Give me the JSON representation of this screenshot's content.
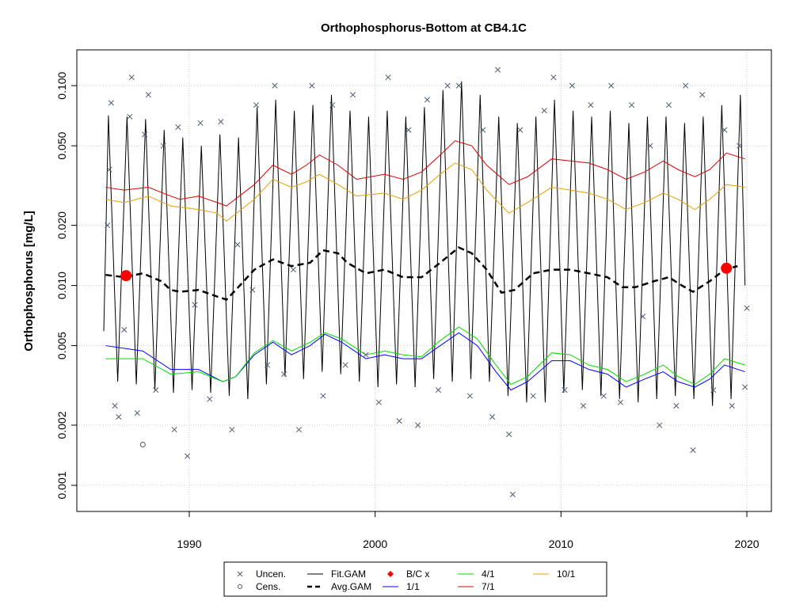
{
  "chart_data": {
    "type": "line",
    "title": "Orthophosphorus-Bottom at CB4.1C",
    "y_label": "Orthophosphorus [mg/L]",
    "xlim": [
      1983.95,
      2021.32
    ],
    "xticks": [
      1990,
      2000,
      2010,
      2020
    ],
    "ylim": [
      0.00074,
      0.151
    ],
    "ylog": true,
    "grid": true,
    "yticks": [
      0.001,
      0.002,
      0.005,
      {
        "value": 0.01,
        "label": "0.010"
      },
      {
        "value": 0.02,
        "label": "0.020"
      },
      {
        "value": 0.05,
        "label": "0.050"
      },
      {
        "value": 0.1,
        "label": "0.100"
      }
    ],
    "series": [
      {
        "name": "Uncen.",
        "color": "#4f5b6e",
        "style": "cross",
        "x": [
          1985.6,
          1985.7,
          1985.8,
          1986.0,
          1986.2,
          1986.5,
          1986.8,
          1986.9,
          1987.2,
          1987.6,
          1987.8,
          1988.2,
          1988.6,
          1989.2,
          1989.4,
          1989.9,
          1990.3,
          1990.6,
          1991.1,
          1991.7,
          1992.3,
          1992.6,
          1993.4,
          1993.6,
          1994.2,
          1994.6,
          1995.1,
          1995.6,
          1995.9,
          1996.6,
          1997.2,
          1997.7,
          1998.4,
          1998.8,
          1999.5,
          2000.2,
          2000.7,
          2001.3,
          2001.8,
          2002.3,
          2002.8,
          2003.4,
          2003.9,
          2004.5,
          2005.1,
          2005.8,
          2006.3,
          2006.6,
          2007.2,
          2007.4,
          2007.8,
          2008.5,
          2009.1,
          2009.6,
          2010.2,
          2010.6,
          2011.2,
          2011.6,
          2012.3,
          2012.7,
          2013.2,
          2013.8,
          2014.4,
          2014.8,
          2015.3,
          2015.8,
          2016.2,
          2016.7,
          2017.1,
          2017.6,
          2018.2,
          2018.8,
          2019.2,
          2019.6,
          2019.9,
          2020.0
        ],
        "values": [
          0.02,
          0.038,
          0.082,
          0.0025,
          0.0022,
          0.006,
          0.07,
          0.11,
          0.0023,
          0.057,
          0.09,
          0.003,
          0.05,
          0.0019,
          0.062,
          0.0014,
          0.008,
          0.065,
          0.0027,
          0.066,
          0.0019,
          0.016,
          0.0095,
          0.08,
          0.004,
          0.1,
          0.0036,
          0.012,
          0.0019,
          0.1,
          0.0028,
          0.08,
          0.004,
          0.09,
          0.0045,
          0.0026,
          0.11,
          0.0021,
          0.06,
          0.002,
          0.085,
          0.003,
          0.1,
          0.1,
          0.0028,
          0.06,
          0.0022,
          0.12,
          0.0018,
          0.0009,
          0.06,
          0.0028,
          0.075,
          0.11,
          0.003,
          0.1,
          0.0025,
          0.08,
          0.0028,
          0.1,
          0.0026,
          0.08,
          0.007,
          0.05,
          0.002,
          0.08,
          0.0025,
          0.1,
          0.0015,
          0.09,
          0.003,
          0.06,
          0.0025,
          0.05,
          0.0031,
          0.0077
        ]
      },
      {
        "name": "Cens.",
        "color": "#4f5b6e",
        "style": "circle",
        "x": [
          1987.5
        ],
        "values": [
          0.0016
        ]
      },
      {
        "name": "Fit.GAM",
        "color": "#000000",
        "style": "line",
        "x": [
          1985.4,
          1985.65,
          1986.15,
          1986.65,
          1987.15,
          1987.65,
          1988.15,
          1988.65,
          1989.15,
          1989.65,
          1990.15,
          1990.65,
          1991.15,
          1991.65,
          1992.15,
          1992.65,
          1993.15,
          1993.65,
          1994.15,
          1994.65,
          1995.15,
          1995.65,
          1996.15,
          1996.65,
          1997.15,
          1997.65,
          1998.15,
          1998.65,
          1999.15,
          1999.65,
          2000.15,
          2000.65,
          2001.15,
          2001.65,
          2002.15,
          2002.65,
          2003.15,
          2003.65,
          2004.15,
          2004.65,
          2005.15,
          2005.65,
          2006.15,
          2006.65,
          2007.15,
          2007.65,
          2008.15,
          2008.65,
          2009.15,
          2009.65,
          2010.15,
          2010.65,
          2011.15,
          2011.65,
          2012.15,
          2012.65,
          2013.15,
          2013.65,
          2014.15,
          2014.65,
          2015.15,
          2015.65,
          2016.15,
          2016.65,
          2017.15,
          2017.65,
          2018.15,
          2018.65,
          2019.15,
          2019.65,
          2019.9
        ],
        "values": [
          0.0059,
          0.071,
          0.0033,
          0.07,
          0.0032,
          0.068,
          0.003,
          0.06,
          0.0029,
          0.055,
          0.003,
          0.05,
          0.0029,
          0.057,
          0.0028,
          0.055,
          0.0027,
          0.078,
          0.0032,
          0.085,
          0.0035,
          0.075,
          0.0034,
          0.08,
          0.0037,
          0.09,
          0.0036,
          0.075,
          0.0033,
          0.07,
          0.0031,
          0.075,
          0.0032,
          0.07,
          0.0031,
          0.078,
          0.0034,
          0.095,
          0.0033,
          0.105,
          0.0034,
          0.09,
          0.0033,
          0.07,
          0.0028,
          0.065,
          0.0026,
          0.07,
          0.0026,
          0.085,
          0.0029,
          0.075,
          0.003,
          0.07,
          0.0028,
          0.075,
          0.0027,
          0.065,
          0.0026,
          0.07,
          0.0027,
          0.07,
          0.0028,
          0.065,
          0.0027,
          0.07,
          0.0025,
          0.08,
          0.0027,
          0.09,
          0.01
        ]
      },
      {
        "name": "Avg.GAM",
        "color": "#000000",
        "style": "dashed",
        "x": [
          1985.5,
          1986.5,
          1987.5,
          1988.5,
          1989,
          1989.5,
          1990.5,
          1991.5,
          1992,
          1992.5,
          1993.5,
          1994.5,
          1995.5,
          1996.5,
          1997.2,
          1998,
          1998.5,
          1999.5,
          2000.5,
          2001.5,
          2002.5,
          2003.5,
          2004.5,
          2005.2,
          2006,
          2006.8,
          2007.5,
          2008.5,
          2009.5,
          2010.5,
          2011.5,
          2012.5,
          2013.3,
          2014,
          2015,
          2015.8,
          2016.5,
          2017.1,
          2018,
          2018.8,
          2019.5
        ],
        "values": [
          0.0113,
          0.011,
          0.0115,
          0.0105,
          0.0095,
          0.0093,
          0.0095,
          0.0088,
          0.0085,
          0.0095,
          0.012,
          0.0135,
          0.0125,
          0.013,
          0.015,
          0.0145,
          0.013,
          0.0115,
          0.012,
          0.011,
          0.011,
          0.013,
          0.0155,
          0.0145,
          0.012,
          0.0092,
          0.0095,
          0.0115,
          0.012,
          0.012,
          0.0115,
          0.011,
          0.0098,
          0.0098,
          0.0105,
          0.011,
          0.01,
          0.0093,
          0.0105,
          0.012,
          0.0125
        ]
      },
      {
        "name": "B/C x",
        "color": "#ff0000",
        "style": "dot",
        "x": [
          1986.6,
          2018.9
        ],
        "values": [
          0.0112,
          0.0122
        ]
      },
      {
        "name": "1/1",
        "color": "#0000ff",
        "style": "line",
        "x": [
          1985.5,
          1987.5,
          1989,
          1990.5,
          1991.8,
          1992.5,
          1993.5,
          1994.5,
          1995.5,
          1996.5,
          1997.3,
          1998.2,
          1999.5,
          2000.5,
          2001.5,
          2002.5,
          2003.5,
          2004.5,
          2005.5,
          2006.5,
          2007.3,
          2008.2,
          2009.5,
          2010.5,
          2011.5,
          2012.5,
          2013.5,
          2014.5,
          2015.5,
          2016.3,
          2017.2,
          2018,
          2018.8,
          2019.9
        ],
        "values": [
          0.005,
          0.0047,
          0.0038,
          0.0038,
          0.0033,
          0.0035,
          0.0045,
          0.0052,
          0.0045,
          0.005,
          0.0057,
          0.0052,
          0.0043,
          0.0045,
          0.0043,
          0.0043,
          0.005,
          0.0058,
          0.005,
          0.0037,
          0.003,
          0.0033,
          0.0042,
          0.0042,
          0.0038,
          0.0036,
          0.0031,
          0.0034,
          0.0037,
          0.0033,
          0.0031,
          0.0034,
          0.004,
          0.0037
        ]
      },
      {
        "name": "4/1",
        "color": "#00dd00",
        "style": "line",
        "x": [
          1985.5,
          1987.5,
          1989,
          1990.5,
          1991.8,
          1992.5,
          1993.5,
          1994.5,
          1995.5,
          1996.5,
          1997.3,
          1998.2,
          1999.5,
          2000.5,
          2001.5,
          2002.5,
          2003.5,
          2004.5,
          2005.5,
          2006.5,
          2007.3,
          2008.2,
          2009.5,
          2010.5,
          2011.5,
          2012.5,
          2013.5,
          2014.5,
          2015.5,
          2016.3,
          2017.2,
          2018,
          2018.8,
          2019.9
        ],
        "values": [
          0.0043,
          0.0043,
          0.0036,
          0.0037,
          0.0033,
          0.0035,
          0.0046,
          0.0053,
          0.0047,
          0.0052,
          0.0058,
          0.0054,
          0.0045,
          0.0047,
          0.0045,
          0.0044,
          0.0053,
          0.0062,
          0.0054,
          0.004,
          0.0032,
          0.0035,
          0.0046,
          0.0045,
          0.004,
          0.0038,
          0.0033,
          0.0036,
          0.004,
          0.0035,
          0.0032,
          0.0036,
          0.0043,
          0.004
        ]
      },
      {
        "name": "7/1",
        "color": "#dd0000",
        "style": "line",
        "x": [
          1985.5,
          1986.5,
          1987.8,
          1989,
          1989.5,
          1990.5,
          1991.5,
          1992,
          1993.5,
          1994.5,
          1995.5,
          1996.3,
          1997,
          1998,
          1999,
          2000.5,
          2001.5,
          2002.5,
          2003.5,
          2004.3,
          2005.2,
          2006,
          2007.2,
          2008.2,
          2009.5,
          2010.5,
          2011.5,
          2012.5,
          2013.5,
          2014.5,
          2015.5,
          2016.3,
          2017.2,
          2018,
          2018.9,
          2019.9
        ],
        "values": [
          0.031,
          0.03,
          0.031,
          0.028,
          0.027,
          0.028,
          0.026,
          0.025,
          0.032,
          0.04,
          0.036,
          0.04,
          0.045,
          0.04,
          0.034,
          0.036,
          0.034,
          0.037,
          0.045,
          0.053,
          0.05,
          0.04,
          0.032,
          0.035,
          0.043,
          0.042,
          0.041,
          0.038,
          0.034,
          0.037,
          0.042,
          0.038,
          0.035,
          0.038,
          0.046,
          0.043
        ]
      },
      {
        "name": "10/1",
        "color": "#e6a000",
        "style": "line",
        "x": [
          1985.5,
          1986.5,
          1987.8,
          1989,
          1990.5,
          1991.5,
          1992,
          1993.5,
          1994.5,
          1995.5,
          1996.3,
          1997,
          1998,
          1999,
          2000.5,
          2001.5,
          2002.5,
          2003.5,
          2004.3,
          2005.2,
          2006,
          2007.2,
          2008.2,
          2009.5,
          2010.5,
          2011.5,
          2012.5,
          2013.5,
          2014.5,
          2015.5,
          2016.3,
          2017.2,
          2018,
          2018.9,
          2019.9
        ],
        "values": [
          0.027,
          0.026,
          0.028,
          0.025,
          0.024,
          0.023,
          0.021,
          0.027,
          0.034,
          0.031,
          0.033,
          0.036,
          0.032,
          0.028,
          0.029,
          0.027,
          0.03,
          0.036,
          0.041,
          0.038,
          0.03,
          0.023,
          0.026,
          0.031,
          0.03,
          0.029,
          0.027,
          0.024,
          0.026,
          0.029,
          0.027,
          0.024,
          0.027,
          0.032,
          0.031
        ]
      }
    ]
  }
}
